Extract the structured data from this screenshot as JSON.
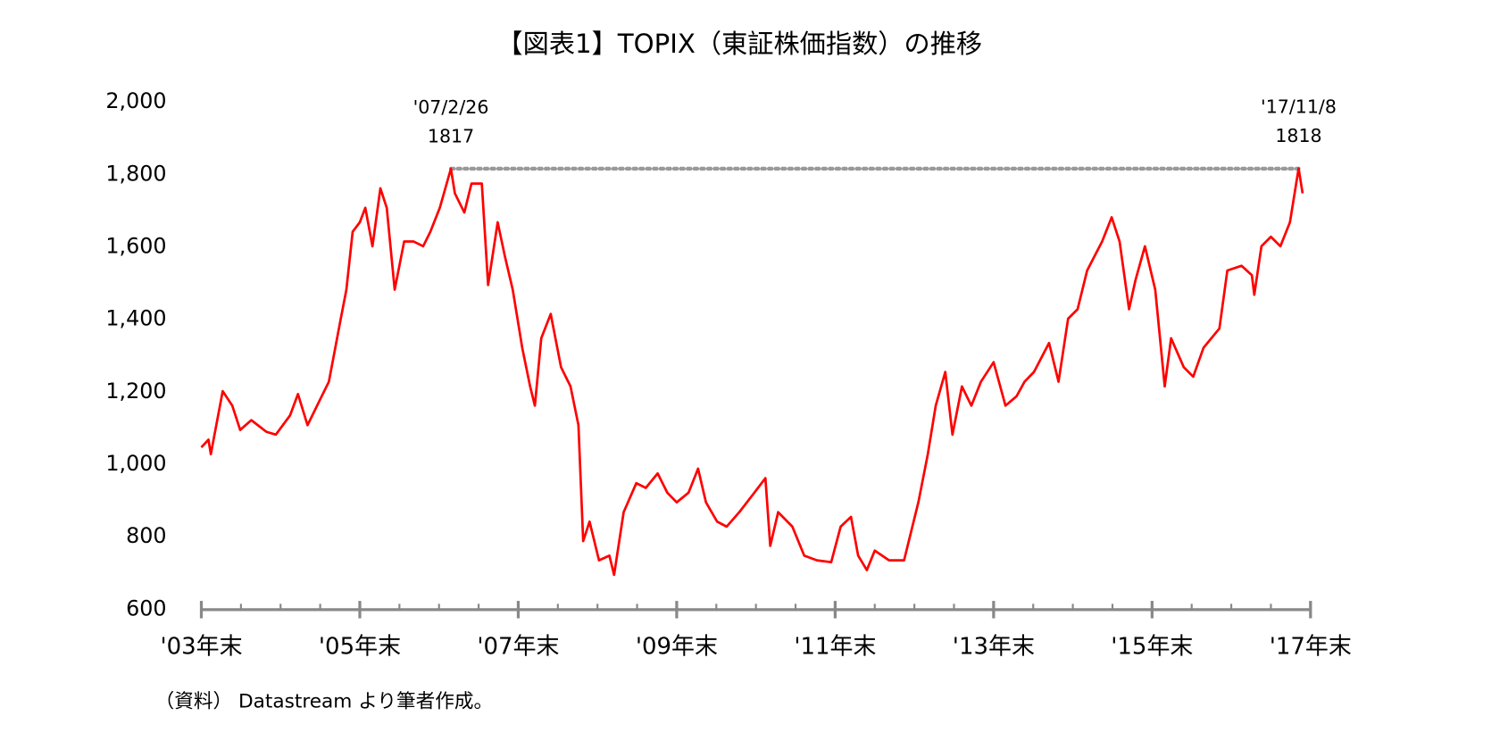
{
  "chart_data": {
    "type": "line",
    "title": "【図表1】TOPIX（東証株価指数）の推移",
    "source": "（資料） Datastream より筆者作成。",
    "color": "#ff0000",
    "x": [
      2004.0,
      2004.09,
      2004.12,
      2004.27,
      2004.39,
      2004.49,
      2004.63,
      2004.82,
      2004.94,
      2005.12,
      2005.22,
      2005.34,
      2005.49,
      2005.61,
      2005.76,
      2005.83,
      2005.91,
      2006.0,
      2006.07,
      2006.16,
      2006.26,
      2006.34,
      2006.44,
      2006.56,
      2006.68,
      2006.8,
      2006.89,
      2007.01,
      2007.15,
      2007.2,
      2007.32,
      2007.41,
      2007.54,
      2007.62,
      2007.74,
      2007.83,
      2007.93,
      2008.05,
      2008.15,
      2008.21,
      2008.29,
      2008.41,
      2008.54,
      2008.66,
      2008.76,
      2008.82,
      2008.9,
      2009.02,
      2009.15,
      2009.21,
      2009.33,
      2009.49,
      2009.61,
      2009.76,
      2009.88,
      2010.0,
      2010.15,
      2010.27,
      2010.37,
      2010.51,
      2010.63,
      2010.79,
      2010.98,
      2011.12,
      2011.18,
      2011.28,
      2011.46,
      2011.61,
      2011.77,
      2011.95,
      2012.07,
      2012.2,
      2012.29,
      2012.4,
      2012.5,
      2012.68,
      2012.87,
      2013.05,
      2013.17,
      2013.27,
      2013.39,
      2013.48,
      2013.6,
      2013.72,
      2013.84,
      2014.0,
      2014.15,
      2014.29,
      2014.39,
      2014.51,
      2014.7,
      2014.82,
      2014.94,
      2015.06,
      2015.18,
      2015.37,
      2015.49,
      2015.59,
      2015.71,
      2015.79,
      2015.91,
      2016.04,
      2016.16,
      2016.24,
      2016.4,
      2016.52,
      2016.65,
      2016.85,
      2016.95,
      2017.13,
      2017.26,
      2017.29,
      2017.38,
      2017.5,
      2017.62,
      2017.74,
      2017.85,
      2017.9
    ],
    "values": [
      1048,
      1069,
      1029,
      1203,
      1163,
      1096,
      1123,
      1091,
      1083,
      1136,
      1195,
      1109,
      1176,
      1229,
      1403,
      1483,
      1643,
      1669,
      1709,
      1603,
      1763,
      1709,
      1483,
      1616,
      1616,
      1603,
      1643,
      1709,
      1817,
      1749,
      1696,
      1776,
      1776,
      1496,
      1669,
      1576,
      1483,
      1323,
      1216,
      1163,
      1349,
      1416,
      1269,
      1216,
      1109,
      789,
      843,
      736,
      749,
      696,
      869,
      949,
      936,
      976,
      923,
      896,
      923,
      989,
      896,
      843,
      829,
      869,
      923,
      963,
      776,
      869,
      829,
      749,
      736,
      731,
      829,
      856,
      749,
      709,
      763,
      736,
      736,
      896,
      1029,
      1163,
      1256,
      1083,
      1216,
      1163,
      1229,
      1283,
      1163,
      1189,
      1229,
      1256,
      1336,
      1229,
      1403,
      1429,
      1536,
      1616,
      1683,
      1616,
      1429,
      1509,
      1603,
      1483,
      1216,
      1349,
      1269,
      1243,
      1323,
      1376,
      1536,
      1549,
      1523,
      1469,
      1603,
      1629,
      1603,
      1669,
      1818,
      1749
    ],
    "xlim": [
      2004,
      2018
    ],
    "xticks": [
      {
        "value": 2004,
        "label": "'03年末"
      },
      {
        "value": 2006,
        "label": "'05年末"
      },
      {
        "value": 2008,
        "label": "'07年末"
      },
      {
        "value": 2010,
        "label": "'09年末"
      },
      {
        "value": 2012,
        "label": "'11年末"
      },
      {
        "value": 2014,
        "label": "'13年末"
      },
      {
        "value": 2016,
        "label": "'15年末"
      },
      {
        "value": 2018,
        "label": "'17年末"
      }
    ],
    "minor_xticks": [
      2004.5,
      2005,
      2005.5,
      2006.5,
      2007,
      2007.5,
      2008.5,
      2009,
      2009.5,
      2010.5,
      2011,
      2011.5,
      2012.5,
      2013,
      2013.5,
      2014.5,
      2015,
      2015.5,
      2016.5,
      2017,
      2017.5
    ],
    "ylim": [
      600,
      2000
    ],
    "yticks": [
      {
        "value": 600,
        "label": "600"
      },
      {
        "value": 800,
        "label": "800"
      },
      {
        "value": 1000,
        "label": "1,000"
      },
      {
        "value": 1200,
        "label": "1,200"
      },
      {
        "value": 1400,
        "label": "1,400"
      },
      {
        "value": 1600,
        "label": "1,600"
      },
      {
        "value": 1800,
        "label": "1,800"
      },
      {
        "value": 2000,
        "label": "2,000"
      }
    ],
    "grid": false,
    "annotations": [
      {
        "label": "'07/2/26",
        "x": 2007.15,
        "value": 1817
      },
      {
        "label": "'17/11/8",
        "x": 2017.85,
        "value": 1818
      }
    ]
  }
}
